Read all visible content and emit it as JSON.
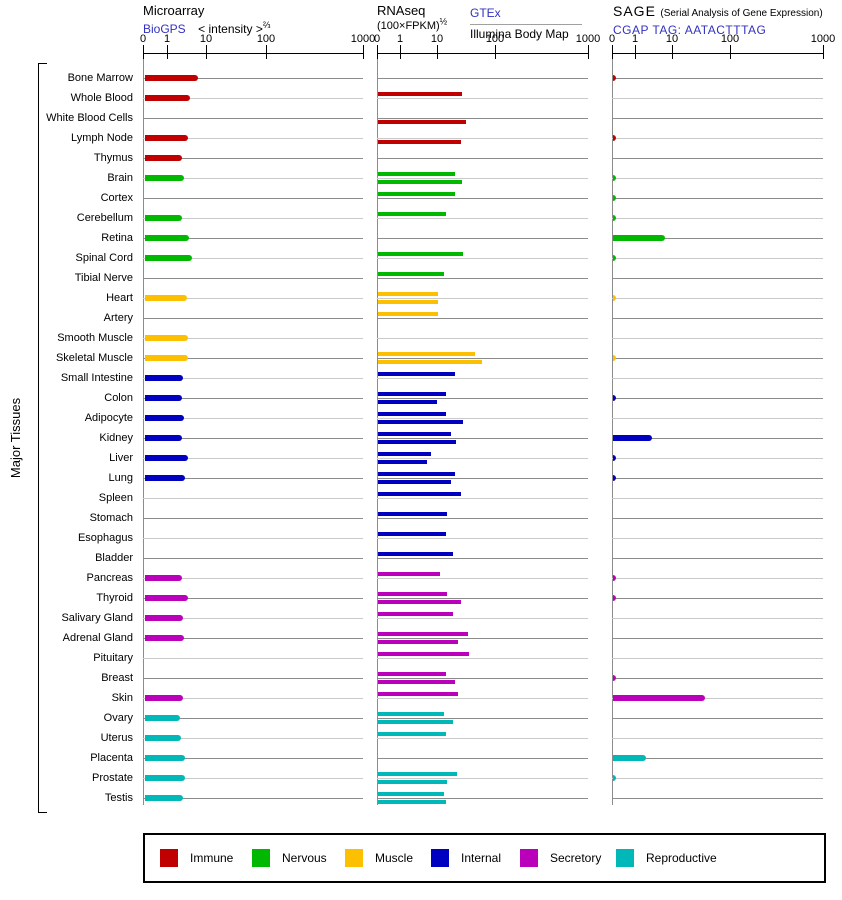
{
  "header": {
    "microarray": {
      "title": "Microarray",
      "source": "BioGPS",
      "intensity": "< intensity >",
      "exp": "⅔"
    },
    "rnaseq": {
      "title": "RNAseq",
      "formula": "(100×FPKM)",
      "exp": "½",
      "gtex": "GTEx",
      "illumina": "Illumina Body Map"
    },
    "sage": {
      "title": "SAGE",
      "subtitle": "(Serial Analysis of Gene Expression)",
      "tag": "CGAP TAG: AATACTTTAG"
    }
  },
  "y_axis_label": "Major Tissues",
  "legend": [
    {
      "label": "Immune",
      "color": "#c00000"
    },
    {
      "label": "Nervous",
      "color": "#00b800"
    },
    {
      "label": "Muscle",
      "color": "#fdc000"
    },
    {
      "label": "Internal",
      "color": "#0000c0"
    },
    {
      "label": "Secretory",
      "color": "#bb00bb"
    },
    {
      "label": "Reproductive",
      "color": "#00b8b8"
    }
  ],
  "chart_data": {
    "type": "bar",
    "orientation": "horizontal",
    "x_scale": "custom log-like (ticks 0,1,10,100,1000 at 0%,10.9%,28.5%,56%,100% of panel width)",
    "tick_labels": [
      "0",
      "1",
      "10",
      "100",
      "1000"
    ],
    "tick_values": [
      0,
      1,
      10,
      100,
      1000
    ],
    "panels": [
      "Microarray (BioGPS)",
      "RNAseq (GTEx upper bar, Illumina Body Map lower bar)",
      "SAGE (CGAP)"
    ],
    "group_colors": {
      "immune": "#c00000",
      "nervous": "#00b800",
      "muscle": "#fdc000",
      "internal": "#0000c0",
      "secretory": "#bb00bb",
      "reproductive": "#00b8b8"
    },
    "grid": {
      "dark_line": "#8c8c8c",
      "light_line": "#c9c9c9",
      "note": "rows alternate dark/light starting dark"
    },
    "rows": [
      {
        "tissue": "Bone Marrow",
        "group": "immune",
        "microarray": 6.5,
        "gtex": null,
        "illumina": null,
        "sage": 0.05
      },
      {
        "tissue": "Whole Blood",
        "group": "immune",
        "microarray": 4.0,
        "gtex": 27,
        "illumina": null,
        "sage": null
      },
      {
        "tissue": "White Blood Cells",
        "group": "immune",
        "microarray": null,
        "gtex": null,
        "illumina": 31,
        "sage": null
      },
      {
        "tissue": "Lymph Node",
        "group": "immune",
        "microarray": 3.4,
        "gtex": null,
        "illumina": 26,
        "sage": 0.05
      },
      {
        "tissue": "Thymus",
        "group": "immune",
        "microarray": 2.5,
        "gtex": null,
        "illumina": null,
        "sage": null
      },
      {
        "tissue": "Brain",
        "group": "nervous",
        "microarray": 2.8,
        "gtex": 20,
        "illumina": 27,
        "sage": 0.05
      },
      {
        "tissue": "Cortex",
        "group": "nervous",
        "microarray": null,
        "gtex": 20,
        "illumina": null,
        "sage": 0.05
      },
      {
        "tissue": "Cerebellum",
        "group": "nervous",
        "microarray": 2.5,
        "gtex": 14,
        "illumina": null,
        "sage": 0.05
      },
      {
        "tissue": "Retina",
        "group": "nervous",
        "microarray": 3.6,
        "gtex": null,
        "illumina": null,
        "sage": 6.6
      },
      {
        "tissue": "Spinal Cord",
        "group": "nervous",
        "microarray": 4.5,
        "gtex": 28,
        "illumina": null,
        "sage": 0.05
      },
      {
        "tissue": "Tibial Nerve",
        "group": "nervous",
        "microarray": null,
        "gtex": 13,
        "illumina": null,
        "sage": null
      },
      {
        "tissue": "Heart",
        "group": "muscle",
        "microarray": 3.2,
        "gtex": 10.3,
        "illumina": 10.3,
        "sage": 0.05
      },
      {
        "tissue": "Artery",
        "group": "muscle",
        "microarray": null,
        "gtex": 10.4,
        "illumina": null,
        "sage": null
      },
      {
        "tissue": "Smooth Muscle",
        "group": "muscle",
        "microarray": 3.4,
        "gtex": null,
        "illumina": null,
        "sage": null
      },
      {
        "tissue": "Skeletal Muscle",
        "group": "muscle",
        "microarray": 3.4,
        "gtex": 45,
        "illumina": 59,
        "sage": 0.05
      },
      {
        "tissue": "Small Intestine",
        "group": "internal",
        "microarray": 2.6,
        "gtex": 20,
        "illumina": null,
        "sage": null
      },
      {
        "tissue": "Colon",
        "group": "internal",
        "microarray": 2.5,
        "gtex": 14,
        "illumina": 10,
        "sage": 0.05
      },
      {
        "tissue": "Adipocyte",
        "group": "internal",
        "microarray": 2.8,
        "gtex": 14,
        "illumina": 28,
        "sage": null
      },
      {
        "tissue": "Kidney",
        "group": "internal",
        "microarray": 2.5,
        "gtex": 17,
        "illumina": 21,
        "sage": 2.9
      },
      {
        "tissue": "Liver",
        "group": "internal",
        "microarray": 3.4,
        "gtex": 6.8,
        "illumina": 5.3,
        "sage": 0.05
      },
      {
        "tissue": "Lung",
        "group": "internal",
        "microarray": 3.0,
        "gtex": 20,
        "illumina": 17,
        "sage": 0.05
      },
      {
        "tissue": "Spleen",
        "group": "internal",
        "microarray": null,
        "gtex": 26,
        "illumina": null,
        "sage": null
      },
      {
        "tissue": "Stomach",
        "group": "internal",
        "microarray": null,
        "gtex": 15,
        "illumina": null,
        "sage": null
      },
      {
        "tissue": "Esophagus",
        "group": "internal",
        "microarray": null,
        "gtex": 14,
        "illumina": null,
        "sage": null
      },
      {
        "tissue": "Bladder",
        "group": "internal",
        "microarray": null,
        "gtex": 19,
        "illumina": null,
        "sage": null
      },
      {
        "tissue": "Pancreas",
        "group": "secretory",
        "microarray": 2.5,
        "gtex": 11,
        "illumina": null,
        "sage": 0.05
      },
      {
        "tissue": "Thyroid",
        "group": "secretory",
        "microarray": 3.4,
        "gtex": 15,
        "illumina": 26,
        "sage": 0.05
      },
      {
        "tissue": "Salivary Gland",
        "group": "secretory",
        "microarray": 2.6,
        "gtex": 19,
        "illumina": null,
        "sage": null
      },
      {
        "tissue": "Adrenal Gland",
        "group": "secretory",
        "microarray": 2.8,
        "gtex": 34,
        "illumina": 23,
        "sage": null
      },
      {
        "tissue": "Pituitary",
        "group": "secretory",
        "microarray": null,
        "gtex": 35,
        "illumina": null,
        "sage": null
      },
      {
        "tissue": "Breast",
        "group": "secretory",
        "microarray": null,
        "gtex": 14,
        "illumina": 20,
        "sage": 0.05
      },
      {
        "tissue": "Skin",
        "group": "secretory",
        "microarray": 2.6,
        "gtex": 23,
        "illumina": null,
        "sage": 37
      },
      {
        "tissue": "Ovary",
        "group": "reproductive",
        "microarray": 2.2,
        "gtex": 13,
        "illumina": 19,
        "sage": null
      },
      {
        "tissue": "Uterus",
        "group": "reproductive",
        "microarray": 2.35,
        "gtex": 14,
        "illumina": null,
        "sage": null
      },
      {
        "tissue": "Placenta",
        "group": "reproductive",
        "microarray": 3.0,
        "gtex": null,
        "illumina": null,
        "sage": 2.0
      },
      {
        "tissue": "Prostate",
        "group": "reproductive",
        "microarray": 3.0,
        "gtex": 22,
        "illumina": 15,
        "sage": 0.05
      },
      {
        "tissue": "Testis",
        "group": "reproductive",
        "microarray": 2.6,
        "gtex": 13,
        "illumina": 14,
        "sage": null
      }
    ]
  }
}
